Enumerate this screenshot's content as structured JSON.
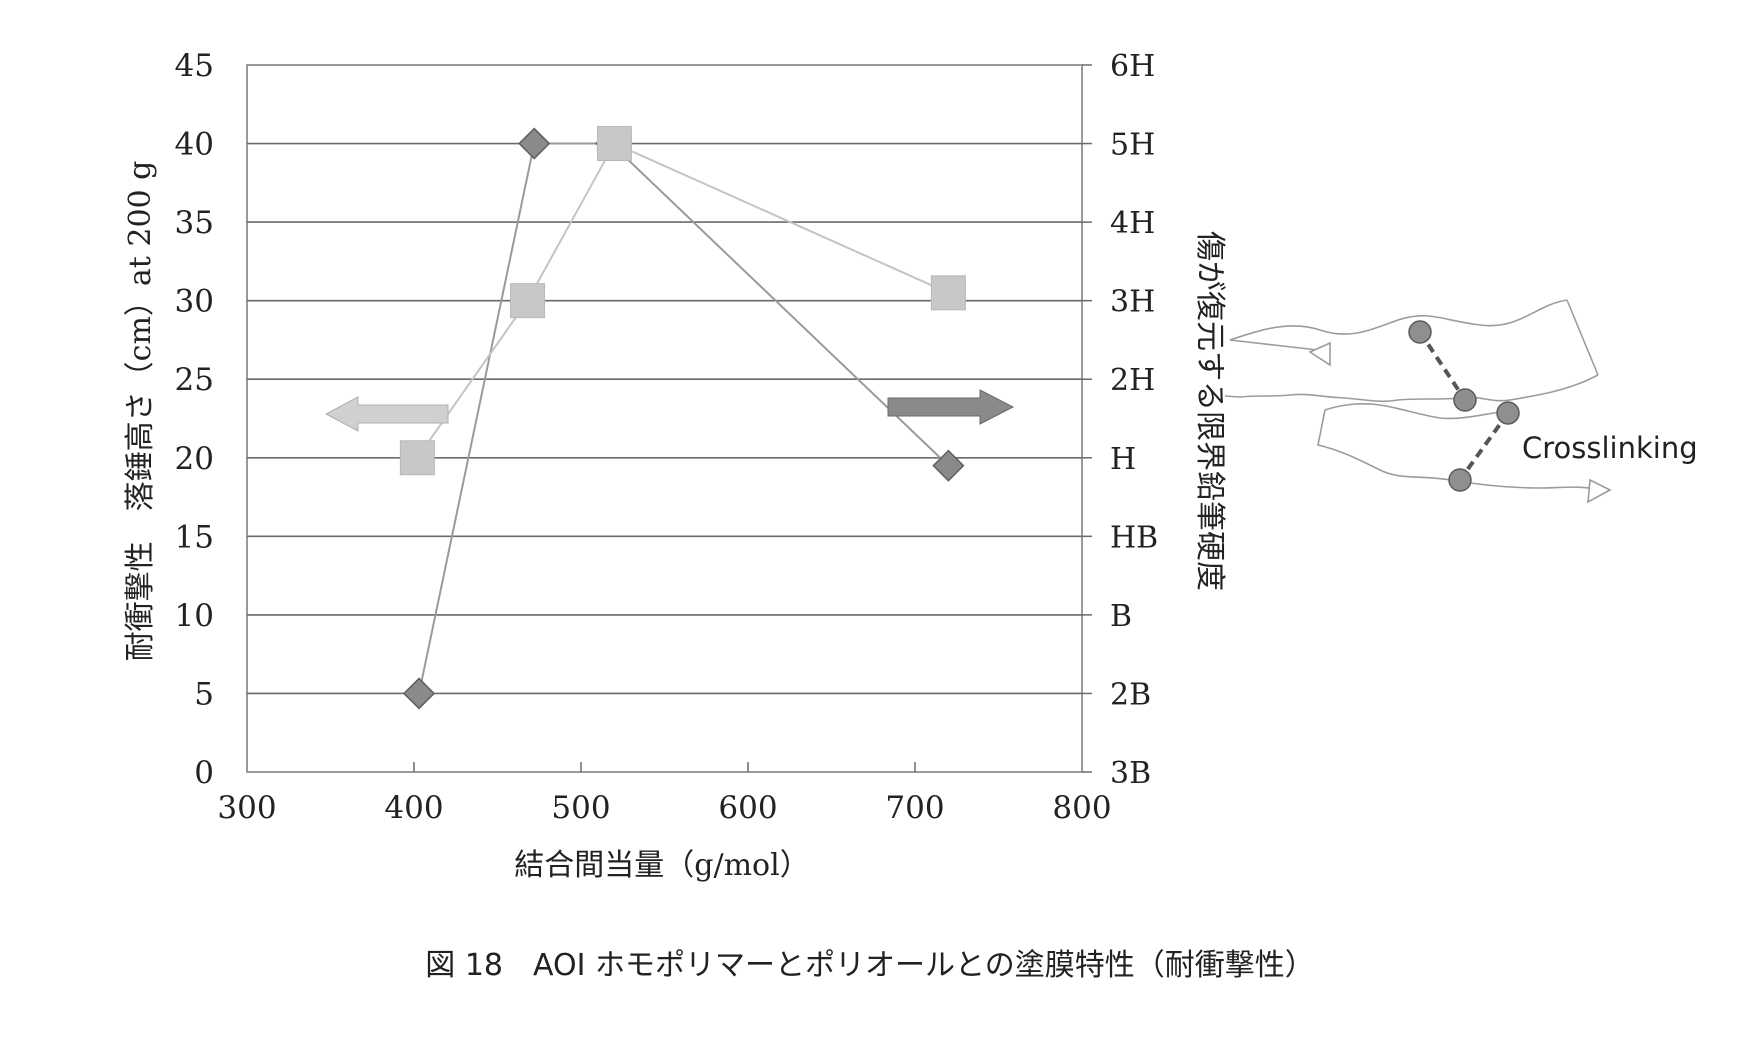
{
  "chart_data": {
    "type": "scatter",
    "xlabel": "結合間当量（g/mol）",
    "ylabel": "耐衝撃性　落錘高さ（cm）at 200 g",
    "y2label": "傷が復元する限界鉛筆硬度",
    "xlim": [
      300,
      800
    ],
    "ylim": [
      0,
      45
    ],
    "x_ticks": [
      "300",
      "400",
      "500",
      "600",
      "700",
      "800"
    ],
    "y_ticks": [
      "0",
      "5",
      "10",
      "15",
      "20",
      "25",
      "30",
      "35",
      "40",
      "45"
    ],
    "y2_ticks": [
      "3B",
      "2B",
      "B",
      "HB",
      "H",
      "2H",
      "3H",
      "4H",
      "5H",
      "6H"
    ],
    "grid": "horizontal",
    "series": [
      {
        "axis": "left",
        "marker": "diamond",
        "color": "#8a8a8a",
        "points": [
          {
            "x": 403,
            "y": 5
          },
          {
            "x": 472,
            "y": 40
          },
          {
            "x": 518,
            "y": 40
          },
          {
            "x": 720,
            "y": 19.5
          }
        ]
      },
      {
        "axis": "right",
        "marker": "square",
        "color": "#c8c8c8",
        "points": [
          {
            "x": 402,
            "y": 20
          },
          {
            "x": 468,
            "y": 30
          },
          {
            "x": 520,
            "y": 40
          },
          {
            "x": 720,
            "y": 30.5
          }
        ]
      }
    ],
    "annotations": {
      "left_arrow_color": "#d0d0d0",
      "right_arrow_color": "#8a8a8a"
    }
  },
  "inset": {
    "label": "Crosslinking",
    "node_color": "#8f8f8f"
  },
  "caption": "図 18　AOI ホモポリマーとポリオールとの塗膜特性（耐衝撃性）"
}
